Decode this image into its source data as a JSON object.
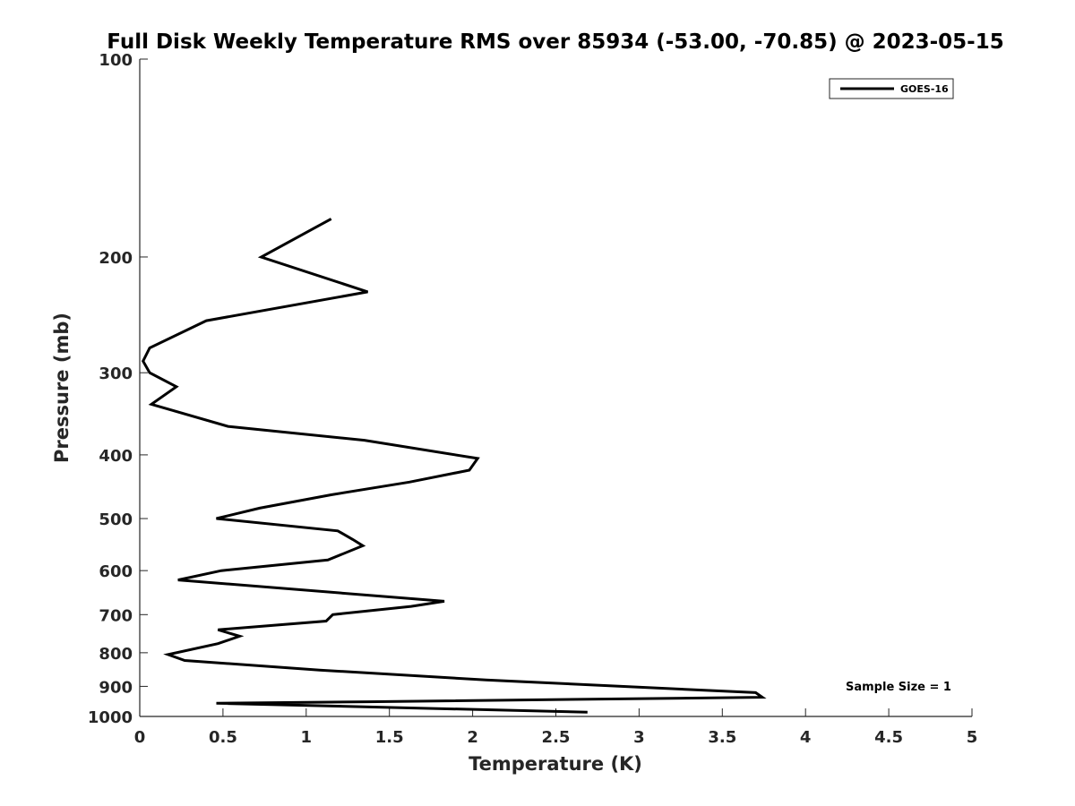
{
  "chart_data": {
    "type": "line",
    "title": "Full Disk Weekly Temperature RMS over 85934 (-53.00, -70.85) @ 2023-05-15",
    "xlabel": "Temperature (K)",
    "ylabel": "Pressure (mb)",
    "xlim": [
      0,
      5
    ],
    "ylim": [
      100,
      1000
    ],
    "y_scale": "log",
    "y_reversed": true,
    "x_ticks": [
      "0",
      "0.5",
      "1",
      "1.5",
      "2",
      "2.5",
      "3",
      "3.5",
      "4",
      "4.5",
      "5"
    ],
    "y_ticks": [
      "100",
      "200",
      "300",
      "400",
      "500",
      "600",
      "700",
      "800",
      "900",
      "1000"
    ],
    "grid": false,
    "legend_position": "top-right",
    "series": [
      {
        "name": "GOES-16",
        "color": "#000000",
        "points": [
          [
            1.15,
            175
          ],
          [
            0.73,
            200
          ],
          [
            1.37,
            226
          ],
          [
            0.4,
            250
          ],
          [
            0.06,
            275
          ],
          [
            0.02,
            288
          ],
          [
            0.06,
            300
          ],
          [
            0.22,
            315
          ],
          [
            0.07,
            335
          ],
          [
            0.53,
            362
          ],
          [
            1.35,
            380
          ],
          [
            2.03,
            405
          ],
          [
            1.98,
            422
          ],
          [
            1.62,
            440
          ],
          [
            1.15,
            460
          ],
          [
            0.72,
            482
          ],
          [
            0.46,
            500
          ],
          [
            1.19,
            522
          ],
          [
            1.28,
            538
          ],
          [
            1.34,
            550
          ],
          [
            1.13,
            578
          ],
          [
            0.49,
            600
          ],
          [
            0.23,
            620
          ],
          [
            1.83,
            668
          ],
          [
            1.63,
            680
          ],
          [
            1.16,
            700
          ],
          [
            1.12,
            716
          ],
          [
            0.47,
            738
          ],
          [
            0.6,
            755
          ],
          [
            0.47,
            775
          ],
          [
            0.17,
            805
          ],
          [
            0.27,
            822
          ],
          [
            1.08,
            850
          ],
          [
            2.08,
            880
          ],
          [
            3.7,
            920
          ],
          [
            3.74,
            935
          ],
          [
            1.37,
            950
          ],
          [
            0.46,
            955
          ],
          [
            2.69,
            985
          ]
        ]
      }
    ]
  },
  "annotation": {
    "sample_size": "Sample Size = 1"
  }
}
